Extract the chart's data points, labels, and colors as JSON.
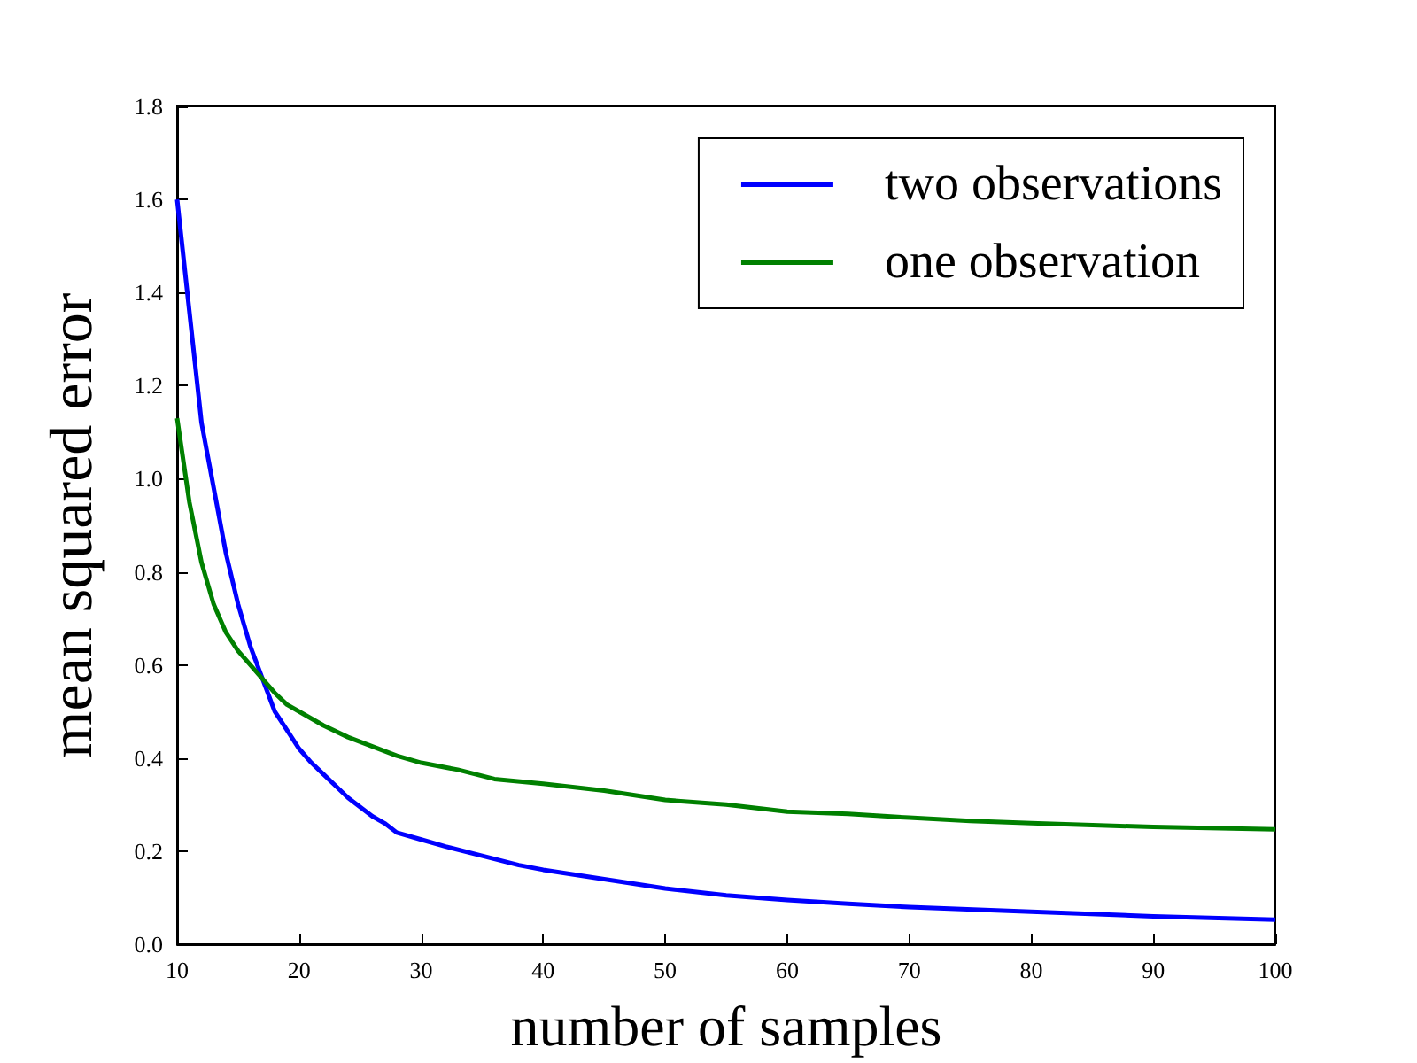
{
  "chart_data": {
    "type": "line",
    "xlabel": "number of samples",
    "ylabel": "mean squared error",
    "xlim": [
      10,
      100
    ],
    "xticks": [
      10,
      20,
      30,
      40,
      50,
      60,
      70,
      80,
      90,
      100
    ],
    "ylim": [
      0,
      1.8
    ],
    "yticks": [
      {
        "value": 0,
        "label": "0.0"
      },
      {
        "value": 0.2,
        "label": "0.2"
      },
      {
        "value": 0.4,
        "label": "0.4"
      },
      {
        "value": 0.6,
        "label": "0.6"
      },
      {
        "value": 0.8,
        "label": "0.8"
      },
      {
        "value": 1,
        "label": "1.0"
      },
      {
        "value": 1.2,
        "label": "1.2"
      },
      {
        "value": 1.4,
        "label": "1.4"
      },
      {
        "value": 1.6,
        "label": "1.6"
      },
      {
        "value": 1.8,
        "label": "1.8"
      }
    ],
    "grid": false,
    "legend": "top right",
    "marker": "none",
    "line_style": "solid",
    "series": [
      {
        "name": "two observations",
        "color": "#0000ff",
        "x": [
          10,
          11,
          12,
          13,
          14,
          15,
          16,
          17,
          18,
          19,
          20,
          21,
          22,
          23,
          24,
          25,
          26,
          27,
          28,
          30,
          32,
          35,
          38,
          40,
          45,
          50,
          55,
          60,
          65,
          70,
          80,
          90,
          100
        ],
        "values": [
          1.6,
          1.36,
          1.12,
          0.98,
          0.84,
          0.73,
          0.64,
          0.57,
          0.5,
          0.46,
          0.42,
          0.39,
          0.365,
          0.34,
          0.315,
          0.295,
          0.275,
          0.26,
          0.24,
          0.225,
          0.21,
          0.19,
          0.17,
          0.16,
          0.14,
          0.12,
          0.105,
          0.095,
          0.087,
          0.08,
          0.07,
          0.06,
          0.053
        ]
      },
      {
        "name": "one observation",
        "color": "#008000",
        "x": [
          10,
          11,
          12,
          13,
          14,
          15,
          16,
          17,
          18,
          19,
          20,
          22,
          24,
          26,
          28,
          30,
          33,
          36,
          40,
          45,
          50,
          55,
          60,
          65,
          70,
          75,
          80,
          90,
          100
        ],
        "values": [
          1.13,
          0.95,
          0.82,
          0.73,
          0.67,
          0.63,
          0.6,
          0.57,
          0.54,
          0.515,
          0.5,
          0.47,
          0.445,
          0.425,
          0.405,
          0.39,
          0.375,
          0.355,
          0.345,
          0.33,
          0.31,
          0.3,
          0.285,
          0.28,
          0.272,
          0.265,
          0.26,
          0.252,
          0.247
        ]
      }
    ]
  }
}
